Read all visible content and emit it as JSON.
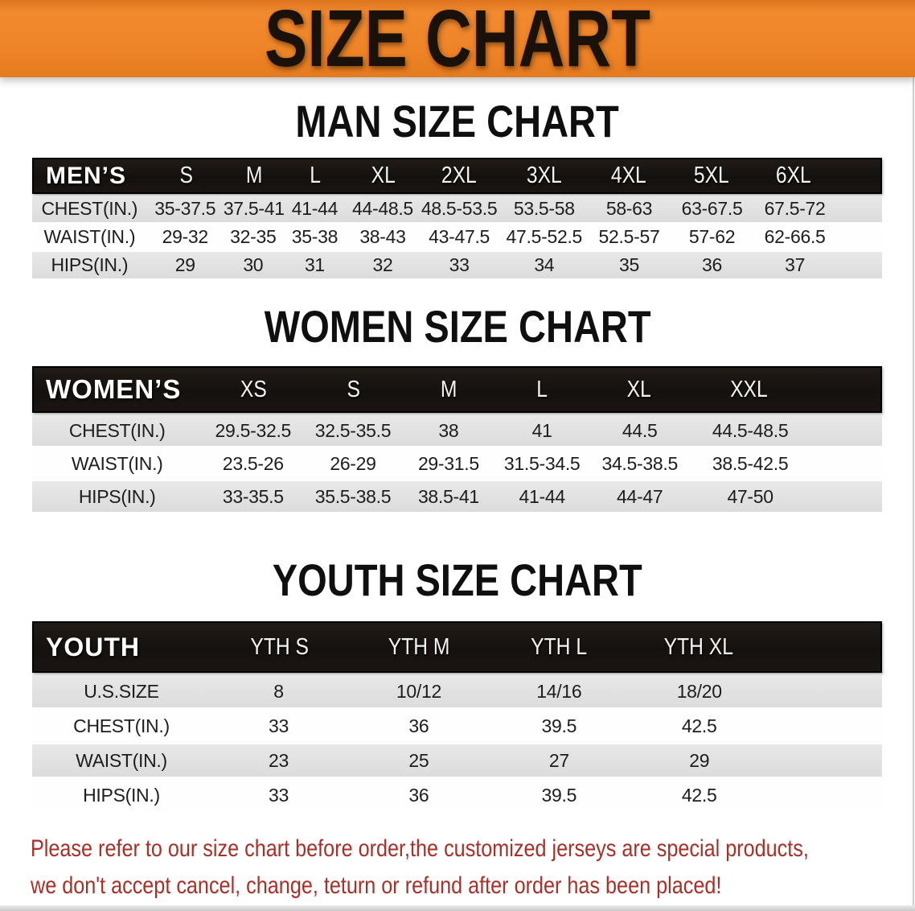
{
  "banner": {
    "title": "SIZE CHART"
  },
  "sections": [
    {
      "title": "MAN SIZE CHART",
      "header_label": "MEN’S",
      "sizes": [
        "S",
        "M",
        "L",
        "XL",
        "2XL",
        "3XL",
        "4XL",
        "5XL",
        "6XL"
      ],
      "rows": [
        {
          "label": "CHEST(IN.)",
          "values": [
            "35-37.5",
            "37.5-41",
            "41-44",
            "44-48.5",
            "48.5-53.5",
            "53.5-58",
            "58-63",
            "63-67.5",
            "67.5-72"
          ]
        },
        {
          "label": "WAIST(IN.)",
          "values": [
            "29-32",
            "32-35",
            "35-38",
            "38-43",
            "43-47.5",
            "47.5-52.5",
            "52.5-57",
            "57-62",
            "62-66.5"
          ]
        },
        {
          "label": "HIPS(IN.)",
          "values": [
            "29",
            "30",
            "31",
            "32",
            "33",
            "34",
            "35",
            "36",
            "37"
          ]
        }
      ]
    },
    {
      "title": "WOMEN SIZE CHART",
      "header_label": "WOMEN’S",
      "sizes": [
        "XS",
        "S",
        "M",
        "L",
        "XL",
        "XXL"
      ],
      "rows": [
        {
          "label": "CHEST(IN.)",
          "values": [
            "29.5-32.5",
            "32.5-35.5",
            "38",
            "41",
            "44.5",
            "44.5-48.5"
          ]
        },
        {
          "label": "WAIST(IN.)",
          "values": [
            "23.5-26",
            "26-29",
            "29-31.5",
            "31.5-34.5",
            "34.5-38.5",
            "38.5-42.5"
          ]
        },
        {
          "label": "HIPS(IN.)",
          "values": [
            "33-35.5",
            "35.5-38.5",
            "38.5-41",
            "41-44",
            "44-47",
            "47-50"
          ]
        }
      ]
    },
    {
      "title": "YOUTH SIZE CHART",
      "header_label": "YOUTH",
      "sizes": [
        "YTH S",
        "YTH M",
        "YTH L",
        "YTH XL"
      ],
      "rows": [
        {
          "label": "U.S.SIZE",
          "values": [
            "8",
            "10/12",
            "14/16",
            "18/20"
          ]
        },
        {
          "label": "CHEST(IN.)",
          "values": [
            "33",
            "36",
            "39.5",
            "42.5"
          ]
        },
        {
          "label": "WAIST(IN.)",
          "values": [
            "23",
            "25",
            "27",
            "29"
          ]
        },
        {
          "label": "HIPS(IN.)",
          "values": [
            "33",
            "36",
            "39.5",
            "42.5"
          ]
        }
      ]
    }
  ],
  "footer": {
    "line1": "Please refer to our size chart before order,the customized jerseys are special products,",
    "line2": "we don't accept cancel, change, teturn or refund after order has been placed!"
  },
  "colors": {
    "banner_orange": "#ee8427",
    "header_black": "#17130f",
    "row_gray": "#e2e2e2",
    "footer_red": "#a73029"
  }
}
